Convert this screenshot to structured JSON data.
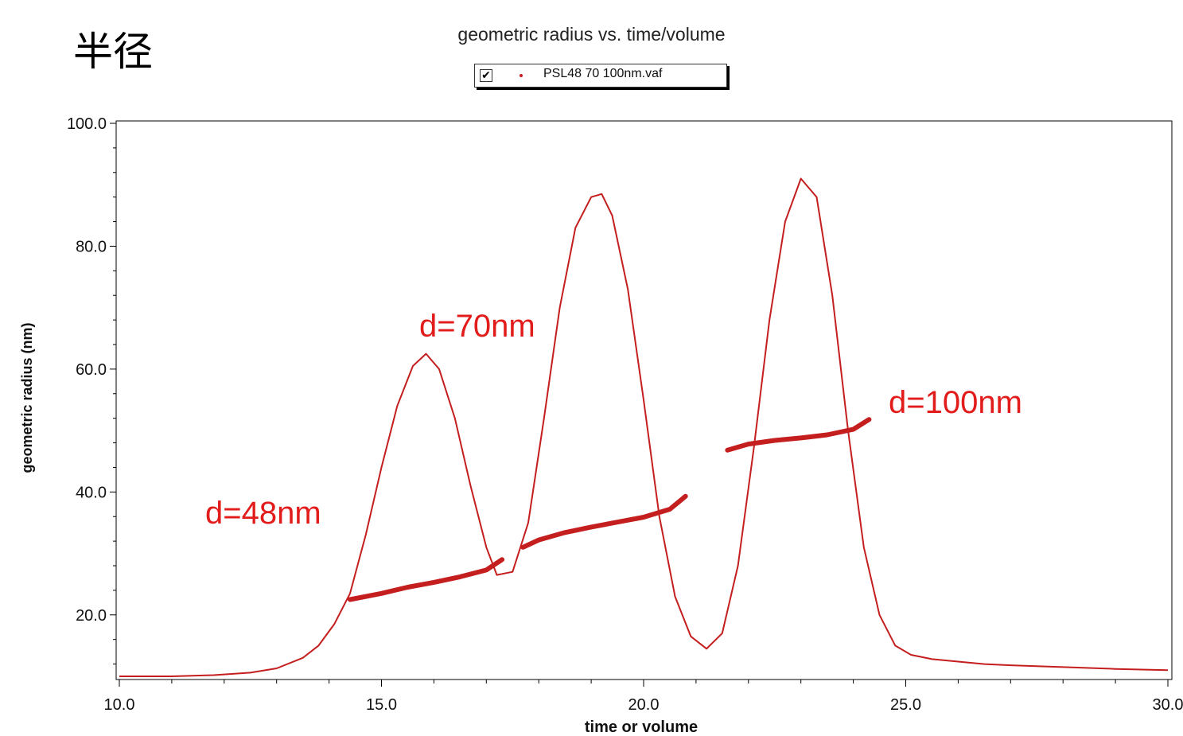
{
  "page": {
    "heading": "半径"
  },
  "legend": {
    "checked": true,
    "label": "PSL48 70 100nm.vaf"
  },
  "colors": {
    "series": "#c41e1e",
    "annotation": "#e21b1b",
    "axis": "#000000"
  },
  "chart_data": {
    "type": "line",
    "title": "geometric radius vs. time/volume",
    "xlabel": "time or volume",
    "ylabel": "geometric radius (nm)",
    "xlim": [
      10.0,
      30.0
    ],
    "ylim": [
      10.0,
      100.0
    ],
    "xticks": [
      "10.0",
      "15.0",
      "20.0",
      "25.0",
      "30.0"
    ],
    "yticks": [
      "20.0",
      "40.0",
      "60.0",
      "80.0",
      "100.0"
    ],
    "grid": false,
    "legend_position": "top-center",
    "series": [
      {
        "name": "PSL48 70 100nm.vaf",
        "style": "line",
        "x": [
          10.0,
          11.0,
          11.8,
          12.5,
          13.0,
          13.5,
          13.8,
          14.1,
          14.4,
          14.7,
          15.0,
          15.3,
          15.6,
          15.85,
          16.1,
          16.4,
          16.7,
          17.0,
          17.2,
          17.5,
          17.8,
          18.1,
          18.4,
          18.7,
          19.0,
          19.2,
          19.4,
          19.7,
          20.0,
          20.3,
          20.6,
          20.9,
          21.2,
          21.5,
          21.8,
          22.1,
          22.4,
          22.7,
          23.0,
          23.3,
          23.6,
          23.9,
          24.2,
          24.5,
          24.8,
          25.1,
          25.5,
          26.0,
          26.5,
          27.0,
          28.0,
          29.0,
          30.0
        ],
        "y": [
          10.0,
          10.0,
          10.2,
          10.6,
          11.3,
          13.0,
          15.0,
          18.5,
          23.5,
          33.0,
          44.0,
          54.0,
          60.5,
          62.5,
          60.0,
          52.0,
          41.0,
          31.0,
          26.5,
          27.0,
          35.0,
          52.0,
          70.0,
          83.0,
          88.0,
          88.5,
          85.0,
          73.0,
          55.0,
          36.0,
          23.0,
          16.5,
          14.5,
          17.0,
          28.0,
          47.0,
          68.0,
          84.0,
          91.0,
          88.0,
          72.0,
          50.0,
          31.0,
          20.0,
          15.0,
          13.5,
          12.8,
          12.4,
          12.0,
          11.8,
          11.5,
          11.2,
          11.0
        ]
      },
      {
        "name": "",
        "style": "points",
        "segments": [
          {
            "label": "d=48nm",
            "x": [
              14.4,
              15.0,
              15.5,
              16.0,
              16.5,
              17.0,
              17.3
            ],
            "y": [
              22.5,
              23.5,
              24.5,
              25.3,
              26.2,
              27.3,
              29.0
            ]
          },
          {
            "label": "d=70nm",
            "x": [
              17.7,
              18.0,
              18.5,
              19.0,
              19.5,
              20.0,
              20.5,
              20.8
            ],
            "y": [
              31.0,
              32.2,
              33.4,
              34.3,
              35.1,
              35.9,
              37.2,
              39.3
            ]
          },
          {
            "label": "d=100nm",
            "x": [
              21.6,
              22.0,
              22.5,
              23.0,
              23.5,
              24.0,
              24.3
            ],
            "y": [
              46.8,
              47.8,
              48.4,
              48.8,
              49.3,
              50.2,
              51.8
            ]
          }
        ]
      }
    ],
    "annotations": [
      "d=48nm",
      "d=70nm",
      "d=100nm"
    ]
  }
}
